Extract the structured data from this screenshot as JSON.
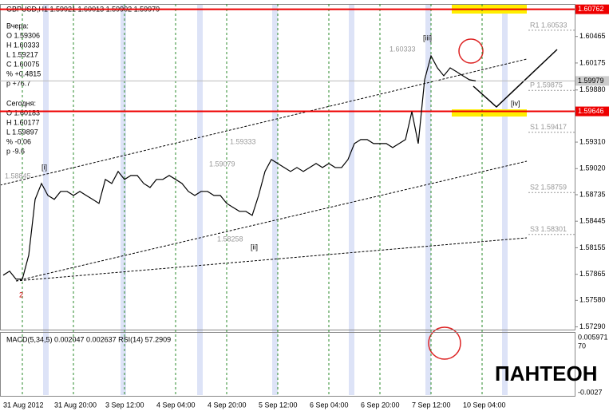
{
  "chart_data": {
    "type": "line",
    "title": "GBPUSD,H1 1.59921 1.60013 1.59902 1.59979",
    "info_yesterday": [
      "Вчера:",
      "O 1.59306",
      "H 1.60333",
      "L 1.59217",
      "C 1.60075",
      "% +0.4815",
      "p +76.7"
    ],
    "info_today": [
      "Сегодня:",
      "O 1.60183",
      "H 1.60177",
      "L 1.59897",
      "% -0.06",
      "p -9.6"
    ],
    "categories": [
      "31 Aug 2012",
      null,
      null,
      null,
      null,
      null,
      null,
      null,
      "31 Aug 20:00",
      null,
      null,
      null,
      null,
      null,
      null,
      null,
      "3 Sep 12:00",
      null,
      null,
      null,
      null,
      null,
      null,
      null,
      "4 Sep 04:00",
      null,
      null,
      null,
      null,
      null,
      null,
      null,
      "4 Sep 20:00",
      null,
      null,
      null,
      null,
      null,
      null,
      null,
      "5 Sep 12:00",
      null,
      null,
      null,
      null,
      null,
      null,
      null,
      "6 Sep 04:00",
      null,
      null,
      null,
      null,
      null,
      null,
      null,
      "6 Sep 20:00",
      null,
      null,
      null,
      null,
      null,
      null,
      null,
      "7 Sep 12:00",
      null,
      null,
      null,
      null,
      null,
      null,
      null,
      "10 Sep 04:00",
      null,
      null
    ],
    "series": [
      {
        "name": "GBPUSD",
        "color": "#000000",
        "values": [
          1.57855,
          1.57899,
          1.57812,
          1.57812,
          1.58073,
          1.58684,
          1.58858,
          1.58727,
          1.58684,
          1.58771,
          1.58771,
          1.58727,
          1.58771,
          1.58727,
          1.58684,
          1.5864,
          1.58902,
          1.58858,
          1.58989,
          1.58902,
          1.58945,
          1.58945,
          1.58858,
          1.58814,
          1.58902,
          1.58902,
          1.58945,
          1.58902,
          1.58858,
          1.58771,
          1.58727,
          1.58771,
          1.58771,
          1.58727,
          1.58727,
          1.5864,
          1.58596,
          1.58553,
          1.58553,
          1.58509,
          1.58727,
          1.58989,
          1.5912,
          1.59076,
          1.59032,
          1.58989,
          1.59032,
          1.58989,
          1.59032,
          1.59076,
          1.59032,
          1.59076,
          1.59032,
          1.59032,
          1.5912,
          1.59294,
          1.59338,
          1.59338,
          1.59294,
          1.59294,
          1.59294,
          1.5925,
          1.59294,
          1.59338,
          1.59643,
          1.59294,
          1.59992,
          1.60253,
          1.60122,
          1.60035,
          1.60122,
          1.60079,
          1.60035,
          1.59992,
          1.59979
        ]
      }
    ],
    "ylim": [
      1.5726,
      1.6082
    ],
    "yticks": [
      1.60465,
      1.60175,
      {
        "value": 1.5988,
        "label": "1.59880"
      },
      {
        "value": 1.5931,
        "label": "1.59310"
      },
      {
        "value": 1.5902,
        "label": "1.59020"
      },
      1.58735,
      1.58445,
      1.58155,
      1.57865,
      {
        "value": 1.5758,
        "label": "1.57580"
      },
      {
        "value": 1.5729,
        "label": "1.57290"
      }
    ],
    "grid": true,
    "red_levels": [
      {
        "value": 1.60762,
        "label": "1.60762"
      },
      {
        "value": 1.59646,
        "label": "1.59646"
      }
    ],
    "current_price": {
      "value": 1.59979,
      "label": "1.59979"
    },
    "pivots": [
      {
        "label": "R1 1.60533",
        "value": 1.60533
      },
      {
        "label": "P 1.59875",
        "value": 1.59875
      },
      {
        "label": "S1 1.59417",
        "value": 1.59417
      },
      {
        "label": "S2 1.58759",
        "value": 1.58759
      },
      {
        "label": "S3 1.58301",
        "value": 1.58301
      }
    ],
    "annotations": [
      "1.60333",
      "1.59333",
      "1.59079",
      "1.58258",
      "1.58845",
      "[i]",
      "[ii]",
      "[iii]",
      "[iv]",
      "2"
    ],
    "indicator_label": "MACD(5,34,5) 0.002047 0.002637 RSI(14) 57.2909",
    "indicator_ticks": [
      "0.005971",
      "70",
      "-0.0027"
    ],
    "logo": "ПАНТЕОН"
  }
}
